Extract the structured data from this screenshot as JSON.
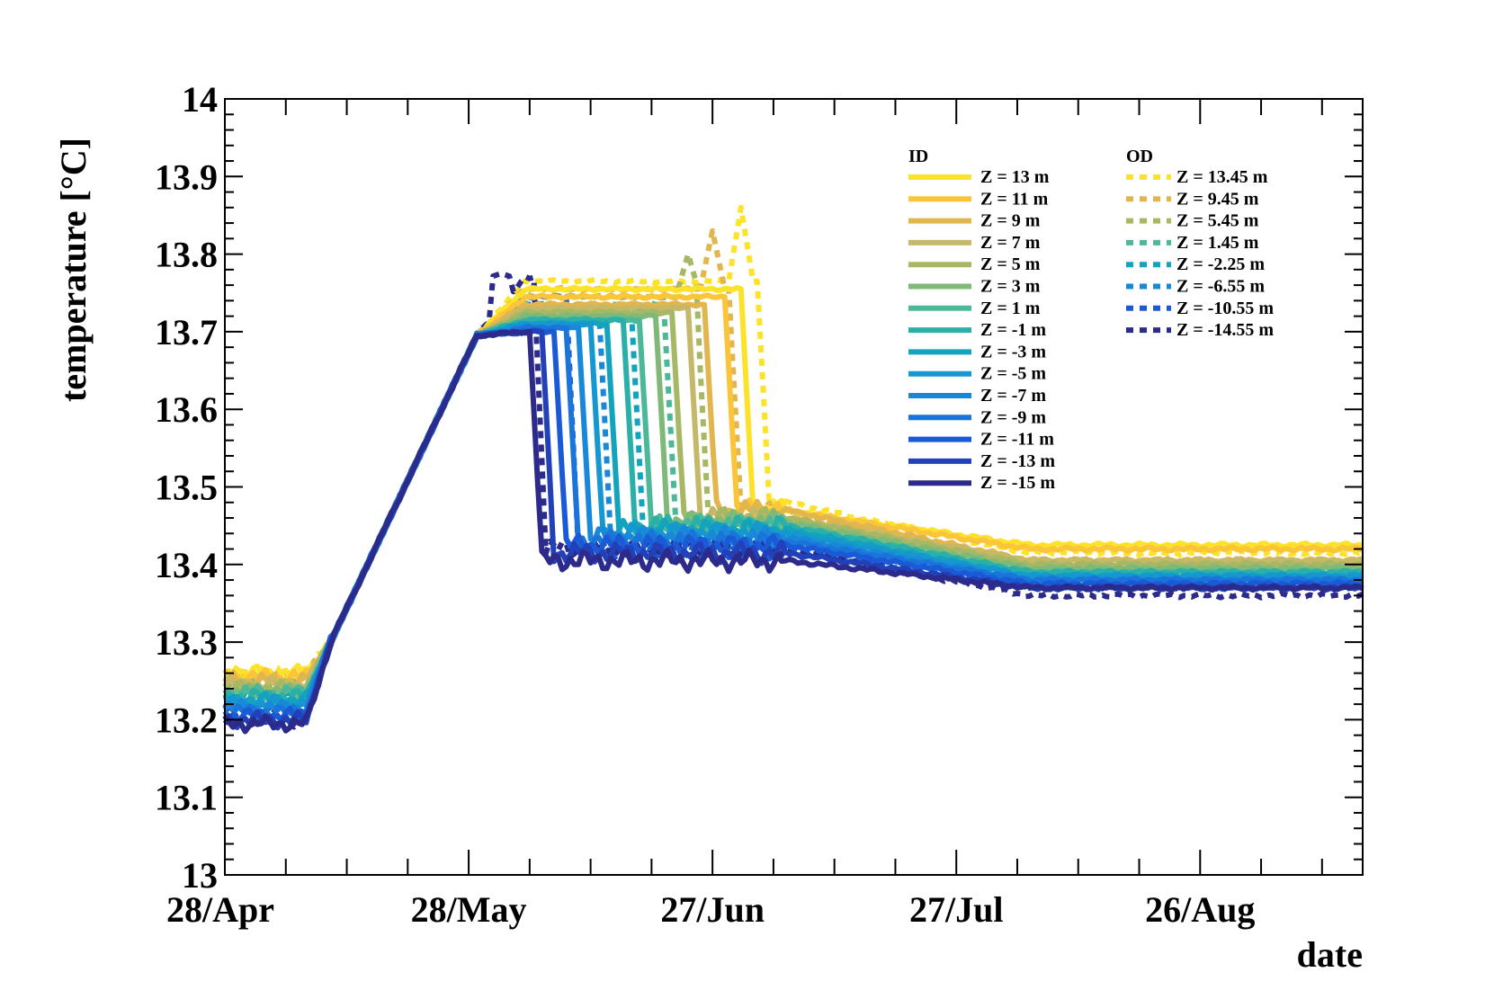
{
  "chart_data": {
    "type": "line",
    "title": "",
    "xlabel": "date",
    "ylabel": "temperature [°C]",
    "ylim": [
      13.0,
      14.0
    ],
    "xlim_days": [
      0,
      140
    ],
    "y_ticks": [
      "13",
      "13.1",
      "13.2",
      "13.3",
      "13.4",
      "13.5",
      "13.6",
      "13.7",
      "13.8",
      "13.9",
      "14"
    ],
    "x_ticks": [
      {
        "label": "28/Apr",
        "day": 0
      },
      {
        "label": "28/May",
        "day": 30
      },
      {
        "label": "27/Jun",
        "day": 60
      },
      {
        "label": "27/Jul",
        "day": 90
      },
      {
        "label": "26/Aug",
        "day": 120
      }
    ],
    "legend_groups": {
      "id_title": "ID",
      "od_title": "OD"
    },
    "series": [
      {
        "name": "Z = 13 m",
        "group": "ID",
        "dash": false,
        "color": "#fde22a",
        "base": 13.26,
        "plateau": 13.755,
        "drop_day": 63.5,
        "after": 13.47,
        "final": 13.425
      },
      {
        "name": "Z = 11 m",
        "group": "ID",
        "dash": false,
        "color": "#fbc53a",
        "base": 13.255,
        "plateau": 13.745,
        "drop_day": 61.5,
        "after": 13.47,
        "final": 13.42
      },
      {
        "name": "Z = 9 m",
        "group": "ID",
        "dash": false,
        "color": "#e1b64e",
        "base": 13.25,
        "plateau": 13.735,
        "drop_day": 59,
        "after": 13.47,
        "final": 13.405
      },
      {
        "name": "Z = 7 m",
        "group": "ID",
        "dash": false,
        "color": "#c5b868",
        "base": 13.245,
        "plateau": 13.73,
        "drop_day": 57,
        "after": 13.46,
        "final": 13.405
      },
      {
        "name": "Z = 5 m",
        "group": "ID",
        "dash": false,
        "color": "#a7b864",
        "base": 13.24,
        "plateau": 13.725,
        "drop_day": 55,
        "after": 13.46,
        "final": 13.4
      },
      {
        "name": "Z = 3 m",
        "group": "ID",
        "dash": false,
        "color": "#7fb978",
        "base": 13.235,
        "plateau": 13.72,
        "drop_day": 53,
        "after": 13.455,
        "final": 13.395
      },
      {
        "name": "Z = 1 m",
        "group": "ID",
        "dash": false,
        "color": "#4cb89a",
        "base": 13.235,
        "plateau": 13.715,
        "drop_day": 51,
        "after": 13.45,
        "final": 13.39
      },
      {
        "name": "Z = -1 m",
        "group": "ID",
        "dash": false,
        "color": "#2ab0a8",
        "base": 13.23,
        "plateau": 13.715,
        "drop_day": 49,
        "after": 13.45,
        "final": 13.39
      },
      {
        "name": "Z = -3 m",
        "group": "ID",
        "dash": false,
        "color": "#14a3bd",
        "base": 13.225,
        "plateau": 13.71,
        "drop_day": 47,
        "after": 13.445,
        "final": 13.385
      },
      {
        "name": "Z = -5 m",
        "group": "ID",
        "dash": false,
        "color": "#1597cf",
        "base": 13.22,
        "plateau": 13.71,
        "drop_day": 45,
        "after": 13.44,
        "final": 13.385
      },
      {
        "name": "Z = -7 m",
        "group": "ID",
        "dash": false,
        "color": "#1a88d8",
        "base": 13.215,
        "plateau": 13.705,
        "drop_day": 43.5,
        "after": 13.435,
        "final": 13.38
      },
      {
        "name": "Z = -9 m",
        "group": "ID",
        "dash": false,
        "color": "#1a74da",
        "base": 13.21,
        "plateau": 13.705,
        "drop_day": 42,
        "after": 13.43,
        "final": 13.38
      },
      {
        "name": "Z = -11 m",
        "group": "ID",
        "dash": false,
        "color": "#1b5ad6",
        "base": 13.205,
        "plateau": 13.7,
        "drop_day": 40.5,
        "after": 13.425,
        "final": 13.375
      },
      {
        "name": "Z = -13 m",
        "group": "ID",
        "dash": false,
        "color": "#2240b8",
        "base": 13.2,
        "plateau": 13.7,
        "drop_day": 39,
        "after": 13.415,
        "final": 13.37
      },
      {
        "name": "Z = -15 m",
        "group": "ID",
        "dash": false,
        "color": "#2c2a8a",
        "base": 13.195,
        "plateau": 13.7,
        "drop_day": 37.5,
        "after": 13.405,
        "final": 13.37
      },
      {
        "name": "Z = 13.45 m",
        "group": "OD",
        "dash": true,
        "color": "#fde22a",
        "base": 13.26,
        "plateau": 13.765,
        "drop_day": 65.5,
        "after": 13.48,
        "final": 13.415,
        "spike": 13.86,
        "spike_day": 63.5
      },
      {
        "name": "Z = 9.45 m",
        "group": "OD",
        "dash": true,
        "color": "#e1b64e",
        "base": 13.255,
        "plateau": 13.755,
        "drop_day": 62,
        "after": 13.47,
        "final": 13.4,
        "spike": 13.83,
        "spike_day": 60
      },
      {
        "name": "Z = 5.45 m",
        "group": "OD",
        "dash": true,
        "color": "#a7b864",
        "base": 13.245,
        "plateau": 13.745,
        "drop_day": 58,
        "after": 13.46,
        "final": 13.395,
        "spike": 13.8,
        "spike_day": 57
      },
      {
        "name": "Z = 1.45 m",
        "group": "OD",
        "dash": true,
        "color": "#4cb89a",
        "base": 13.24,
        "plateau": 13.735,
        "drop_day": 54,
        "after": 13.45,
        "final": 13.385
      },
      {
        "name": "Z = -2.25 m",
        "group": "OD",
        "dash": true,
        "color": "#14a3bd",
        "base": 13.23,
        "plateau": 13.73,
        "drop_day": 50,
        "after": 13.44,
        "final": 13.38
      },
      {
        "name": "Z = -6.55 m",
        "group": "OD",
        "dash": true,
        "color": "#1a88d8",
        "base": 13.22,
        "plateau": 13.735,
        "drop_day": 46,
        "after": 13.43,
        "final": 13.375
      },
      {
        "name": "Z = -10.55 m",
        "group": "OD",
        "dash": true,
        "color": "#1b5ad6",
        "base": 13.21,
        "plateau": 13.745,
        "drop_day": 42,
        "after": 13.42,
        "final": 13.37
      },
      {
        "name": "Z = -14.55 m",
        "group": "OD",
        "dash": true,
        "color": "#2c2a8a",
        "base": 13.2,
        "plateau": 13.77,
        "drop_day": 38,
        "after": 13.42,
        "final": 13.36,
        "spike": 13.775,
        "spike_day": 34
      }
    ]
  }
}
